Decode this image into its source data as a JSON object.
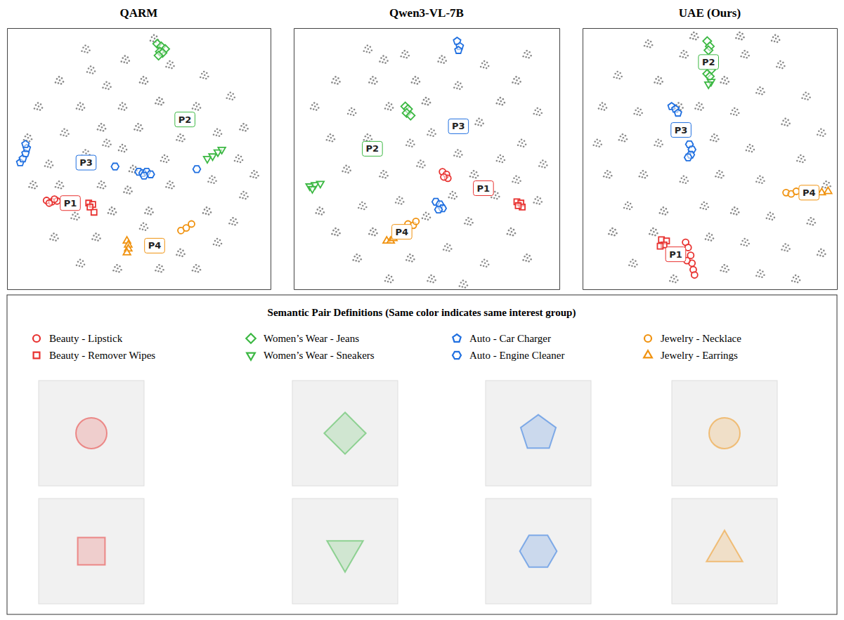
{
  "chart_data": [
    {
      "type": "scatter",
      "title": "QARM",
      "xlim": [
        0,
        100
      ],
      "ylim": [
        0,
        100
      ],
      "tick_labels": false,
      "series": [
        {
          "color": "#8a8a8a",
          "marker": "cluster",
          "x": [
            30,
            45,
            62,
            75,
            20,
            38,
            52,
            85,
            12,
            28,
            44,
            58,
            72,
            90,
            22,
            36,
            50,
            66,
            80,
            8,
            16,
            30,
            44,
            60,
            88,
            94,
            20,
            36,
            46,
            62,
            78,
            90,
            10,
            26,
            40,
            54,
            76,
            86,
            18,
            34,
            52,
            66,
            80,
            28,
            42,
            58,
            72,
            48,
            68,
            32,
            56,
            38
          ],
          "values": [
            92,
            88,
            86,
            82,
            80,
            78,
            80,
            74,
            70,
            70,
            70,
            72,
            70,
            62,
            60,
            62,
            62,
            58,
            60,
            58,
            48,
            52,
            54,
            50,
            50,
            44,
            40,
            40,
            38,
            40,
            42,
            36,
            40,
            28,
            30,
            30,
            30,
            26,
            20,
            20,
            24,
            14,
            18,
            10,
            8,
            8,
            8,
            46,
            66,
            84,
            96,
            56
          ]
        },
        {
          "color": "#e8312f",
          "marker": "circle",
          "x": [
            15,
            17,
            19,
            16,
            18
          ],
          "values": [
            34,
            33.5,
            33.8,
            33,
            34.5
          ]
        },
        {
          "color": "#e8312f",
          "marker": "square",
          "x": [
            31,
            32.5,
            31.5,
            33
          ],
          "values": [
            33,
            32.5,
            31.5,
            29.5
          ]
        },
        {
          "color": "#3cb843",
          "marker": "diamond",
          "x": [
            57,
            58.5,
            60,
            58,
            59,
            57.5
          ],
          "values": [
            94,
            93,
            92,
            91,
            90.5,
            89.5
          ]
        },
        {
          "color": "#3cb843",
          "marker": "triangle-down",
          "x": [
            76,
            78,
            80,
            81.5
          ],
          "values": [
            50,
            51,
            52.5,
            53.5
          ]
        },
        {
          "color": "#1f6fe0",
          "marker": "pentagon",
          "x": [
            5,
            6,
            7,
            7.5,
            7
          ],
          "values": [
            48.5,
            50,
            52,
            54,
            55.5
          ]
        },
        {
          "color": "#1f6fe0",
          "marker": "hexagon",
          "x": [
            50,
            51.5,
            53,
            54.5,
            52,
            41,
            72
          ],
          "values": [
            45,
            44.5,
            45,
            44,
            43.5,
            47,
            46
          ]
        },
        {
          "color": "#f0920f",
          "marker": "circle",
          "x": [
            66,
            68,
            70
          ],
          "values": [
            22.5,
            23.5,
            25
          ]
        },
        {
          "color": "#f0920f",
          "marker": "triangle-up",
          "x": [
            45.5,
            46,
            46,
            45.5
          ],
          "values": [
            18.5,
            17,
            15.5,
            14
          ]
        }
      ],
      "annotations": [
        {
          "text": "P1",
          "x": 24,
          "y": 33,
          "color": "#e8312f"
        },
        {
          "text": "P2",
          "x": 67.5,
          "y": 65,
          "color": "#3cb843"
        },
        {
          "text": "P3",
          "x": 30,
          "y": 48.5,
          "color": "#1f6fe0"
        },
        {
          "text": "P4",
          "x": 56,
          "y": 16.7,
          "color": "#f0920f"
        }
      ]
    },
    {
      "type": "scatter",
      "title": "Qwen3-VL-7B",
      "xlim": [
        0,
        100
      ],
      "ylim": [
        0,
        100
      ],
      "tick_labels": false,
      "series": [
        {
          "color": "#8a8a8a",
          "marker": "cluster",
          "x": [
            28,
            42,
            56,
            72,
            84,
            16,
            30,
            46,
            62,
            78,
            92,
            8,
            22,
            36,
            52,
            70,
            86,
            14,
            28,
            44,
            62,
            78,
            94,
            20,
            34,
            48,
            68,
            84,
            10,
            26,
            40,
            60,
            76,
            92,
            16,
            30,
            50,
            66,
            82,
            24,
            44,
            58,
            72,
            88,
            36,
            52,
            64,
            50,
            34,
            88
          ],
          "values": [
            92,
            90,
            88,
            86,
            80,
            80,
            80,
            80,
            78,
            72,
            68,
            70,
            68,
            70,
            60,
            64,
            56,
            58,
            58,
            56,
            52,
            50,
            48,
            46,
            44,
            48,
            44,
            42,
            30,
            32,
            34,
            36,
            36,
            34,
            22,
            22,
            28,
            26,
            22,
            12,
            12,
            16,
            10,
            12,
            4,
            4,
            2,
            72,
            88,
            90
          ]
        },
        {
          "color": "#e8312f",
          "marker": "circle",
          "x": [
            56,
            57.5,
            58,
            56.5
          ],
          "values": [
            45,
            44,
            42.5,
            43
          ]
        },
        {
          "color": "#e8312f",
          "marker": "square",
          "x": [
            84,
            85.5,
            86,
            84.5
          ],
          "values": [
            33.5,
            33,
            31.5,
            32
          ]
        },
        {
          "color": "#3cb843",
          "marker": "diamond",
          "x": [
            42,
            43,
            42.5,
            44
          ],
          "values": [
            70,
            69,
            67.5,
            66.5
          ]
        },
        {
          "color": "#3cb843",
          "marker": "triangle-down",
          "x": [
            6,
            8,
            10,
            7
          ],
          "values": [
            39.5,
            40,
            40.5,
            38.5
          ]
        },
        {
          "color": "#1f6fe0",
          "marker": "pentagon",
          "x": [
            61.5,
            62.5,
            62
          ],
          "values": [
            95,
            93,
            91.5
          ]
        },
        {
          "color": "#1f6fe0",
          "marker": "hexagon",
          "x": [
            53.5,
            55,
            56,
            54.5
          ],
          "values": [
            33.5,
            32.5,
            31,
            30.5
          ]
        },
        {
          "color": "#f0920f",
          "marker": "circle",
          "x": [
            43,
            45,
            46
          ],
          "values": [
            25,
            24.5,
            26
          ]
        },
        {
          "color": "#f0920f",
          "marker": "triangle-up",
          "x": [
            35,
            36.5,
            37.5
          ],
          "values": [
            18.5,
            18.5,
            19.5
          ]
        }
      ],
      "annotations": [
        {
          "text": "P1",
          "x": 71.4,
          "y": 38.7,
          "color": "#e8312f"
        },
        {
          "text": "P2",
          "x": 29.6,
          "y": 53.8,
          "color": "#3cb843"
        },
        {
          "text": "P3",
          "x": 62,
          "y": 62.4,
          "color": "#1f6fe0"
        },
        {
          "text": "P4",
          "x": 40.7,
          "y": 22,
          "color": "#f0920f"
        }
      ]
    },
    {
      "type": "scatter",
      "title": "UAE (Ours)",
      "xlim": [
        0,
        100
      ],
      "ylim": [
        0,
        100
      ],
      "tick_labels": false,
      "series": [
        {
          "color": "#8a8a8a",
          "marker": "cluster",
          "x": [
            26,
            40,
            64,
            78,
            14,
            30,
            56,
            70,
            88,
            8,
            22,
            46,
            60,
            80,
            94,
            16,
            30,
            52,
            66,
            86,
            10,
            24,
            40,
            54,
            70,
            18,
            32,
            48,
            60,
            74,
            90,
            12,
            28,
            50,
            64,
            80,
            94,
            20,
            56,
            70,
            84,
            36,
            62,
            44,
            96,
            76,
            6,
            38
          ],
          "values": [
            94,
            90,
            90,
            86,
            82,
            80,
            80,
            76,
            74,
            70,
            68,
            70,
            68,
            64,
            60,
            58,
            56,
            58,
            54,
            50,
            44,
            44,
            42,
            44,
            42,
            32,
            30,
            32,
            30,
            28,
            26,
            22,
            22,
            20,
            18,
            16,
            14,
            10,
            8,
            6,
            4,
            4,
            97,
            97,
            40,
            96,
            56,
            70
          ]
        },
        {
          "color": "#e8312f",
          "marker": "circle",
          "x": [
            40.5,
            41.5,
            42.5,
            43,
            43.5,
            44,
            41
          ],
          "values": [
            18,
            16,
            13,
            10,
            7.5,
            5.5,
            11
          ]
        },
        {
          "color": "#e8312f",
          "marker": "square",
          "x": [
            31,
            33,
            32,
            30.5
          ],
          "values": [
            19,
            18.5,
            17,
            16.5
          ]
        },
        {
          "color": "#3cb843",
          "marker": "diamond",
          "x": [
            49,
            50,
            49.5,
            50.5,
            49,
            50
          ],
          "values": [
            95,
            93,
            91.5,
            84,
            82.5,
            81.5
          ]
        },
        {
          "color": "#3cb843",
          "marker": "triangle-down",
          "x": [
            50.5,
            49.5
          ],
          "values": [
            79.5,
            78.5
          ]
        },
        {
          "color": "#1f6fe0",
          "marker": "pentagon",
          "x": [
            35,
            36.5,
            37.5
          ],
          "values": [
            70,
            69,
            67.5
          ]
        },
        {
          "color": "#1f6fe0",
          "marker": "hexagon",
          "x": [
            42,
            43,
            42.5,
            41.5
          ],
          "values": [
            55.5,
            53.5,
            51.5,
            50.5
          ]
        },
        {
          "color": "#f0920f",
          "marker": "circle",
          "x": [
            80,
            82,
            84
          ],
          "values": [
            37,
            36.5,
            37.5
          ]
        },
        {
          "color": "#f0920f",
          "marker": "triangle-up",
          "x": [
            94,
            96.5
          ],
          "values": [
            37,
            37.5
          ]
        }
      ],
      "annotations": [
        {
          "text": "P1",
          "x": 36.6,
          "y": 13.4,
          "color": "#e8312f"
        },
        {
          "text": "P2",
          "x": 49.5,
          "y": 87,
          "color": "#3cb843"
        },
        {
          "text": "P3",
          "x": 38.7,
          "y": 61,
          "color": "#1f6fe0"
        },
        {
          "text": "P4",
          "x": 89,
          "y": 37,
          "color": "#f0920f"
        }
      ]
    }
  ],
  "key_panel": {
    "title": "Semantic Pair Definitions (Same color indicates same interest group)",
    "items": [
      {
        "label": "Beauty - Lipstick",
        "color": "#e8312f",
        "marker": "circle"
      },
      {
        "label": "Beauty - Remover Wipes",
        "color": "#e8312f",
        "marker": "square"
      },
      {
        "label": "Women’s Wear - Jeans",
        "color": "#3cb843",
        "marker": "diamond"
      },
      {
        "label": "Women’s Wear - Sneakers",
        "color": "#3cb843",
        "marker": "triangle-down"
      },
      {
        "label": "Auto - Car Charger",
        "color": "#1f6fe0",
        "marker": "pentagon"
      },
      {
        "label": "Auto - Engine Cleaner",
        "color": "#1f6fe0",
        "marker": "hexagon"
      },
      {
        "label": "Jewelry - Necklace",
        "color": "#f0920f",
        "marker": "circle"
      },
      {
        "label": "Jewelry - Earrings",
        "color": "#f0920f",
        "marker": "triangle-up"
      }
    ]
  }
}
